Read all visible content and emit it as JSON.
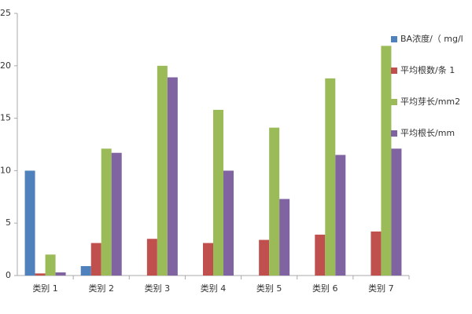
{
  "chart_data": {
    "type": "bar",
    "categories": [
      "类别 1",
      "类别 2",
      "类别 3",
      "类别 4",
      "类别 5",
      "类别 6",
      "类别 7"
    ],
    "series": [
      {
        "name": "BA浓度/（ mg/l",
        "color": "#4f81bd",
        "values": [
          10,
          0.9,
          0,
          0,
          0,
          0,
          0
        ]
      },
      {
        "name": "平均根数/条 1",
        "color": "#c0504d",
        "values": [
          0.2,
          3.1,
          3.5,
          3.1,
          3.4,
          3.9,
          4.2
        ]
      },
      {
        "name": "平均芽长/mm2",
        "color": "#9bbb59",
        "values": [
          2.0,
          12.1,
          20.0,
          15.8,
          14.1,
          18.8,
          21.9
        ]
      },
      {
        "name": "平均根长/mm",
        "color": "#8064a2",
        "values": [
          0.3,
          11.7,
          18.9,
          10.0,
          7.3,
          11.5,
          12.1
        ]
      }
    ],
    "ylim": [
      0,
      25
    ],
    "yticks": [
      0,
      5,
      10,
      15,
      20,
      25
    ],
    "legend": "right"
  }
}
